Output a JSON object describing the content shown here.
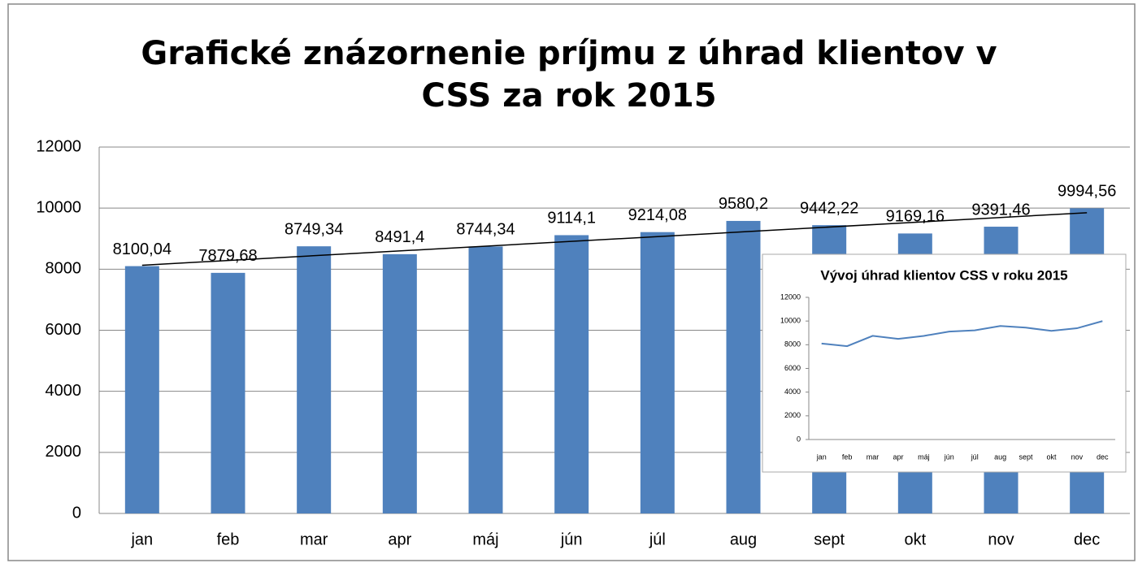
{
  "chart_data": [
    {
      "type": "bar",
      "title": "Grafické znázornenie príjmu z úhrad klientov v CSS za rok 2015",
      "categories": [
        "jan",
        "feb",
        "mar",
        "apr",
        "máj",
        "jún",
        "júl",
        "aug",
        "sept",
        "okt",
        "nov",
        "dec"
      ],
      "values": [
        8100.04,
        7879.68,
        8749.34,
        8491.4,
        8744.34,
        9114.1,
        9214.08,
        9580.2,
        9442.22,
        9169.16,
        9391.46,
        9994.56
      ],
      "value_labels": [
        "8100,04",
        "7879,68",
        "8749,34",
        "8491,4",
        "8744,34",
        "9114,1",
        "9214,08",
        "9580,2",
        "9442,22",
        "9169,16",
        "9391,46",
        "9994,56"
      ],
      "color": "#4f81bd",
      "ylim": [
        0,
        12000
      ],
      "yticks": [
        0,
        2000,
        4000,
        6000,
        8000,
        10000,
        12000
      ],
      "grid": true,
      "trendline": "linear"
    },
    {
      "type": "line",
      "title": "Vývoj úhrad klientov CSS v roku 2015",
      "categories": [
        "jan",
        "feb",
        "mar",
        "apr",
        "máj",
        "jún",
        "júl",
        "aug",
        "sept",
        "okt",
        "nov",
        "dec"
      ],
      "values": [
        8100.04,
        7879.68,
        8749.34,
        8491.4,
        8744.34,
        9114.1,
        9214.08,
        9580.2,
        9442.22,
        9169.16,
        9391.46,
        9994.56
      ],
      "color": "#4f81bd",
      "ylim": [
        0,
        12000
      ],
      "yticks": [
        0,
        2000,
        4000,
        6000,
        8000,
        10000,
        12000
      ],
      "grid": false
    }
  ]
}
